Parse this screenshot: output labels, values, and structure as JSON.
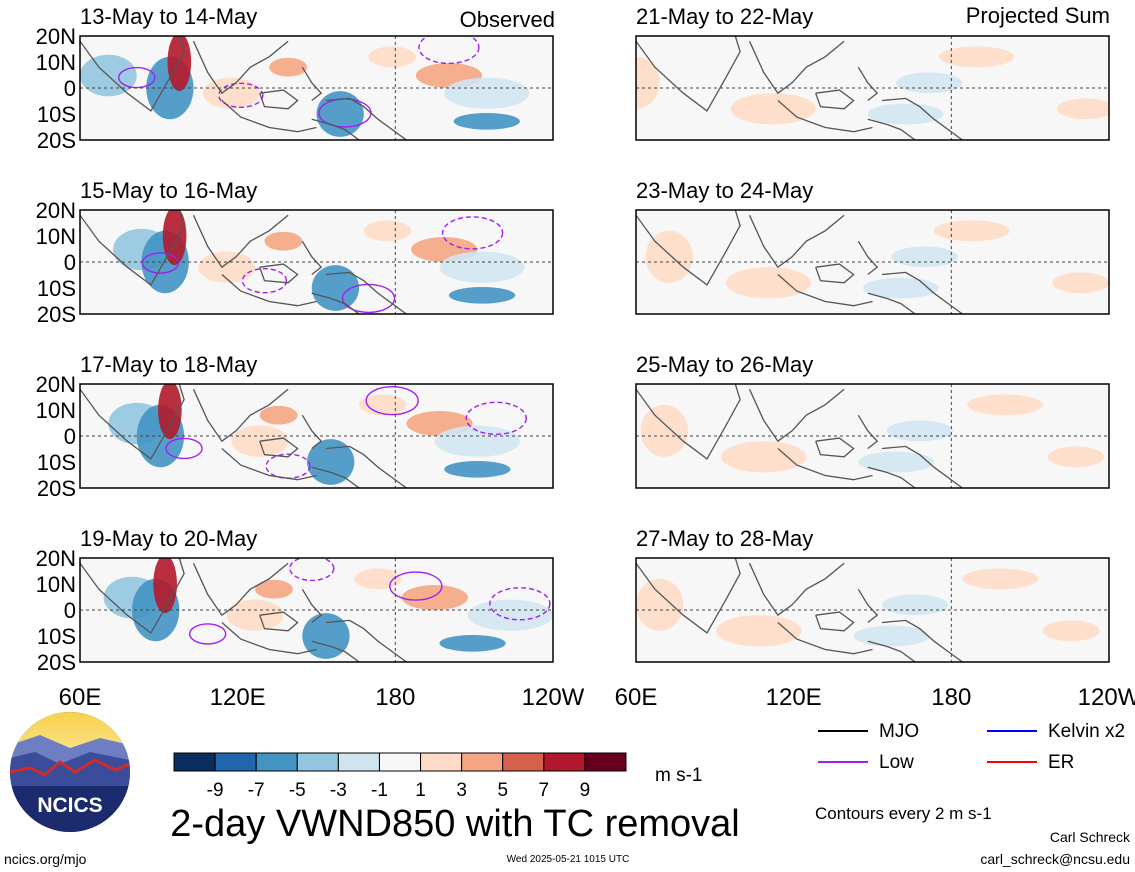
{
  "figure": {
    "title": "2-day VWND850 with TC removal",
    "observed_label": "Observed",
    "projected_label": "Projected Sum",
    "units": "m s-1",
    "contour_note": "Contours every 2 m s-1",
    "author": "Carl Schreck",
    "email": "carl_schreck@ncsu.edu",
    "site": "ncics.org/mjo",
    "timestamp": "Wed 2025-05-21 1015 UTC",
    "logo_text": "NCICS"
  },
  "panels": {
    "left": [
      {
        "date": "13-May to 14-May"
      },
      {
        "date": "15-May to 16-May"
      },
      {
        "date": "17-May to 18-May"
      },
      {
        "date": "19-May to 20-May"
      }
    ],
    "right": [
      {
        "date": "21-May to 22-May"
      },
      {
        "date": "23-May to 24-May"
      },
      {
        "date": "25-May to 26-May"
      },
      {
        "date": "27-May to 28-May"
      }
    ]
  },
  "axes": {
    "lat_labels": [
      "20N",
      "10N",
      "0",
      "10S",
      "20S"
    ],
    "lon_labels": [
      "60E",
      "120E",
      "180",
      "120W"
    ]
  },
  "colorbar": {
    "colors": [
      "#0a2f5e",
      "#2166ac",
      "#4393c3",
      "#92c5de",
      "#d1e5f0",
      "#f7f7f7",
      "#fddbc7",
      "#f4a582",
      "#d6604d",
      "#b2182b",
      "#67001f"
    ],
    "labels": [
      "-9",
      "-7",
      "-5",
      "-3",
      "-1",
      "1",
      "3",
      "5",
      "7",
      "9"
    ]
  },
  "legend": [
    {
      "label": "MJO",
      "color": "#000000"
    },
    {
      "label": "Kelvin x2",
      "color": "#0000ff"
    },
    {
      "label": "Low",
      "color": "#a020f0"
    },
    {
      "label": "ER",
      "color": "#ff0000"
    }
  ]
}
